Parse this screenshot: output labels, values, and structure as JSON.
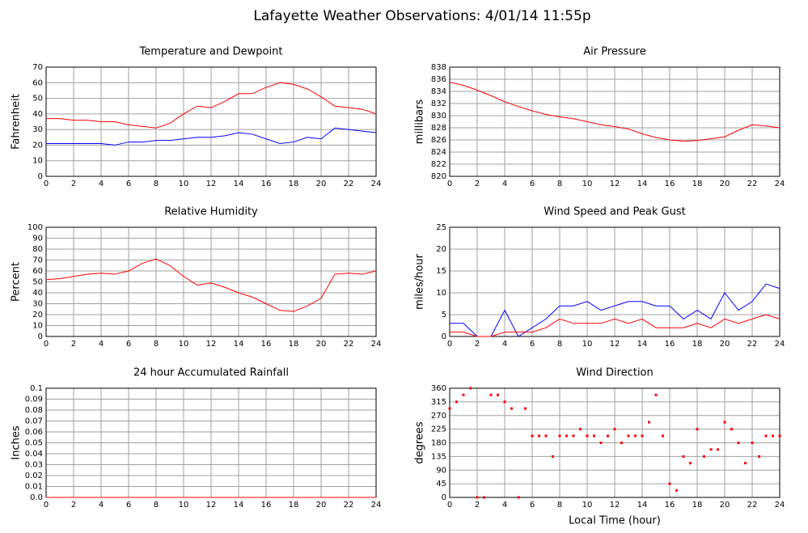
{
  "title": "Lafayette Weather Observations: 4/01/14 11:55p",
  "chart_data": [
    {
      "type": "line",
      "title": "Temperature and Dewpoint",
      "ylabel": "Fahrenheit",
      "x": [
        0,
        1,
        2,
        3,
        4,
        5,
        6,
        7,
        8,
        9,
        10,
        11,
        12,
        13,
        14,
        15,
        16,
        17,
        18,
        19,
        20,
        21,
        22,
        23,
        24
      ],
      "series": [
        {
          "color": "#ff0000",
          "values": [
            37,
            37,
            36,
            36,
            35,
            35,
            33,
            32,
            31,
            34,
            40,
            45,
            44,
            48,
            53,
            53,
            57,
            60,
            59,
            56,
            51,
            45,
            44,
            43,
            40
          ]
        },
        {
          "color": "#0000ff",
          "values": [
            21,
            21,
            21,
            21,
            21,
            20,
            22,
            22,
            23,
            23,
            24,
            25,
            25,
            26,
            28,
            27,
            24,
            21,
            22,
            25,
            24,
            31,
            30,
            29,
            28
          ]
        }
      ],
      "xlim": [
        0,
        24
      ],
      "xticks": [
        0,
        2,
        4,
        6,
        8,
        10,
        12,
        14,
        16,
        18,
        20,
        22,
        24
      ],
      "ylim": [
        0,
        70
      ],
      "yticks": [
        0,
        10,
        20,
        30,
        40,
        50,
        60,
        70
      ],
      "grid": true
    },
    {
      "type": "line",
      "title": "Air Pressure",
      "ylabel": "millibars",
      "x": [
        0,
        1,
        2,
        3,
        4,
        5,
        6,
        7,
        8,
        9,
        10,
        11,
        12,
        13,
        14,
        15,
        16,
        17,
        18,
        19,
        20,
        21,
        22,
        23,
        24
      ],
      "series": [
        {
          "color": "#ff0000",
          "values": [
            835.5,
            835,
            834.2,
            833.3,
            832.3,
            831.5,
            830.8,
            830.2,
            829.8,
            829.5,
            829,
            828.5,
            828.2,
            827.8,
            827,
            826.4,
            826,
            825.8,
            825.9,
            826.2,
            826.5,
            827.6,
            828.5,
            828.3,
            828
          ]
        }
      ],
      "xlim": [
        0,
        24
      ],
      "xticks": [
        0,
        2,
        4,
        6,
        8,
        10,
        12,
        14,
        16,
        18,
        20,
        22,
        24
      ],
      "ylim": [
        820,
        838
      ],
      "yticks": [
        820,
        822,
        824,
        826,
        828,
        830,
        832,
        834,
        836,
        838
      ],
      "grid": true
    },
    {
      "type": "line",
      "title": "Relative Humidity",
      "ylabel": "Percent",
      "x": [
        0,
        1,
        2,
        3,
        4,
        5,
        6,
        7,
        8,
        9,
        10,
        11,
        12,
        13,
        14,
        15,
        16,
        17,
        18,
        19,
        20,
        21,
        22,
        23,
        24
      ],
      "series": [
        {
          "color": "#ff0000",
          "values": [
            52,
            53,
            55,
            57,
            58,
            57,
            60,
            67,
            71,
            65,
            55,
            47,
            49,
            45,
            40,
            36,
            30,
            24,
            23,
            28,
            35,
            57,
            58,
            57,
            60
          ]
        }
      ],
      "xlim": [
        0,
        24
      ],
      "xticks": [
        0,
        2,
        4,
        6,
        8,
        10,
        12,
        14,
        16,
        18,
        20,
        22,
        24
      ],
      "ylim": [
        0,
        100
      ],
      "yticks": [
        0,
        10,
        20,
        30,
        40,
        50,
        60,
        70,
        80,
        90,
        100
      ],
      "grid": true
    },
    {
      "type": "line",
      "title": "Wind Speed and Peak Gust",
      "ylabel": "miles/hour",
      "x": [
        0,
        1,
        2,
        3,
        4,
        5,
        6,
        7,
        8,
        9,
        10,
        11,
        12,
        13,
        14,
        15,
        16,
        17,
        18,
        19,
        20,
        21,
        22,
        23,
        24
      ],
      "series": [
        {
          "color": "#0000ff",
          "values": [
            3,
            3,
            0,
            0,
            6,
            0,
            2,
            4,
            7,
            7,
            8,
            6,
            7,
            8,
            8,
            7,
            7,
            4,
            6,
            4,
            10,
            6,
            8,
            12,
            11
          ]
        },
        {
          "color": "#ff0000",
          "values": [
            1,
            1,
            0,
            0,
            1,
            1,
            1,
            2,
            4,
            3,
            3,
            3,
            4,
            3,
            4,
            2,
            2,
            2,
            3,
            2,
            4,
            3,
            4,
            5,
            4
          ]
        }
      ],
      "xlim": [
        0,
        24
      ],
      "xticks": [
        0,
        2,
        4,
        6,
        8,
        10,
        12,
        14,
        16,
        18,
        20,
        22,
        24
      ],
      "ylim": [
        0,
        25
      ],
      "yticks": [
        0,
        5,
        10,
        15,
        20,
        25
      ],
      "grid": true
    },
    {
      "type": "line",
      "title": "24 hour Accumulated Rainfall",
      "ylabel": "Inches",
      "x": [
        0,
        1,
        2,
        3,
        4,
        5,
        6,
        7,
        8,
        9,
        10,
        11,
        12,
        13,
        14,
        15,
        16,
        17,
        18,
        19,
        20,
        21,
        22,
        23,
        24
      ],
      "series": [
        {
          "color": "#ff0000",
          "values": [
            0,
            0,
            0,
            0,
            0,
            0,
            0,
            0,
            0,
            0,
            0,
            0,
            0,
            0,
            0,
            0,
            0,
            0,
            0,
            0,
            0,
            0,
            0,
            0,
            0
          ]
        }
      ],
      "xlim": [
        0,
        24
      ],
      "xticks": [
        0,
        2,
        4,
        6,
        8,
        10,
        12,
        14,
        16,
        18,
        20,
        22,
        24
      ],
      "ylim": [
        0,
        0.1
      ],
      "yticks": [
        {
          "value": 0,
          "label": "0.0"
        },
        0.01,
        0.02,
        0.03,
        0.04,
        0.05,
        0.06,
        0.07,
        0.08,
        0.09,
        0.1
      ],
      "grid": true
    },
    {
      "type": "scatter",
      "title": "Wind Direction",
      "ylabel": "degrees",
      "xlabel": "Local Time (hour)",
      "x": [
        0,
        0.5,
        1,
        1.5,
        2,
        2.5,
        3,
        3.5,
        4,
        4.5,
        5,
        5.5,
        6,
        6.5,
        7,
        7.5,
        8,
        8.5,
        9,
        9.5,
        10,
        10.5,
        11,
        11.5,
        12,
        12.5,
        13,
        13.5,
        14,
        14.5,
        15,
        15.5,
        16,
        16.5,
        17,
        17.5,
        18,
        18.5,
        19,
        19.5,
        20,
        20.5,
        21,
        21.5,
        22,
        22.5,
        23,
        23.5,
        24
      ],
      "series": [
        {
          "color": "#ff0000",
          "values": [
            293,
            315,
            338,
            360,
            0,
            0,
            338,
            338,
            315,
            293,
            0,
            293,
            203,
            203,
            203,
            135,
            203,
            203,
            203,
            225,
            203,
            203,
            180,
            203,
            225,
            180,
            203,
            203,
            203,
            248,
            338,
            203,
            45,
            23,
            135,
            113,
            225,
            135,
            158,
            158,
            248,
            225,
            180,
            113,
            180,
            135,
            203,
            203,
            203
          ]
        }
      ],
      "xlim": [
        0,
        24
      ],
      "xticks": [
        0,
        2,
        4,
        6,
        8,
        10,
        12,
        14,
        16,
        18,
        20,
        22,
        24
      ],
      "ylim": [
        0,
        360
      ],
      "yticks": [
        0,
        45,
        90,
        135,
        180,
        225,
        270,
        315,
        360
      ],
      "grid": true
    }
  ]
}
